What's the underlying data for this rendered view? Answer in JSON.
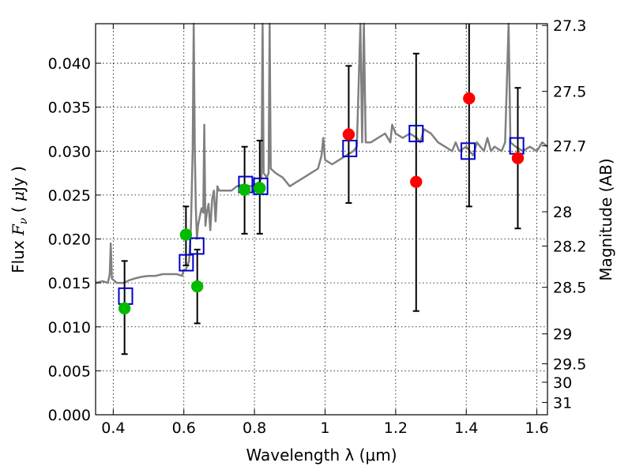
{
  "chart_data": {
    "type": "scatter",
    "xlabel": "Wavelength  λ (μm)",
    "ylabel_left": "Flux  F_ν  ( μJy )",
    "ylabel_right": "Magnitude (AB)",
    "xlim": [
      0.35,
      1.63
    ],
    "ylim": [
      0.0,
      0.0445
    ],
    "grid": true,
    "x_ticks": [
      {
        "value": 0.4,
        "label": "0.4"
      },
      {
        "value": 0.6,
        "label": "0.6"
      },
      {
        "value": 0.8,
        "label": "0.8"
      },
      {
        "value": 1.0,
        "label": "1"
      },
      {
        "value": 1.2,
        "label": "1.2"
      },
      {
        "value": 1.4,
        "label": "1.4"
      },
      {
        "value": 1.6,
        "label": "1.6"
      }
    ],
    "y_ticks": [
      {
        "value": 0.0,
        "label": "0.000"
      },
      {
        "value": 0.005,
        "label": "0.005"
      },
      {
        "value": 0.01,
        "label": "0.010"
      },
      {
        "value": 0.015,
        "label": "0.015"
      },
      {
        "value": 0.02,
        "label": "0.020"
      },
      {
        "value": 0.025,
        "label": "0.025"
      },
      {
        "value": 0.03,
        "label": "0.030"
      },
      {
        "value": 0.035,
        "label": "0.035"
      },
      {
        "value": 0.04,
        "label": "0.040"
      }
    ],
    "mag_ticks": [
      {
        "flux": 0.0443,
        "label": "27.3"
      },
      {
        "flux": 0.0368,
        "label": "27.5"
      },
      {
        "flux": 0.0306,
        "label": "27.7"
      },
      {
        "flux": 0.0231,
        "label": "28"
      },
      {
        "flux": 0.0192,
        "label": "28.2"
      },
      {
        "flux": 0.0145,
        "label": "28.5"
      },
      {
        "flux": 0.0092,
        "label": "29"
      },
      {
        "flux": 0.0058,
        "label": "29.5"
      },
      {
        "flux": 0.0037,
        "label": "30"
      },
      {
        "flux": 0.0014,
        "label": "31"
      }
    ],
    "series": [
      {
        "kind": "model_spectrum",
        "color": "#808080",
        "points": [
          [
            0.35,
            0.015
          ],
          [
            0.37,
            0.0152
          ],
          [
            0.385,
            0.015
          ],
          [
            0.39,
            0.016
          ],
          [
            0.393,
            0.0195
          ],
          [
            0.396,
            0.0155
          ],
          [
            0.41,
            0.015
          ],
          [
            0.43,
            0.015
          ],
          [
            0.445,
            0.0153
          ],
          [
            0.46,
            0.0155
          ],
          [
            0.48,
            0.0157
          ],
          [
            0.5,
            0.0158
          ],
          [
            0.52,
            0.0158
          ],
          [
            0.54,
            0.016
          ],
          [
            0.56,
            0.016
          ],
          [
            0.58,
            0.016
          ],
          [
            0.595,
            0.0158
          ],
          [
            0.6,
            0.0165
          ],
          [
            0.605,
            0.0165
          ],
          [
            0.61,
            0.017
          ],
          [
            0.615,
            0.0175
          ],
          [
            0.62,
            0.0215
          ],
          [
            0.625,
            0.03
          ],
          [
            0.628,
            0.0445
          ],
          [
            0.631,
            0.03
          ],
          [
            0.634,
            0.0235
          ],
          [
            0.637,
            0.02
          ],
          [
            0.64,
            0.0215
          ],
          [
            0.645,
            0.0225
          ],
          [
            0.65,
            0.0235
          ],
          [
            0.655,
            0.023
          ],
          [
            0.658,
            0.033
          ],
          [
            0.661,
            0.0215
          ],
          [
            0.665,
            0.023
          ],
          [
            0.67,
            0.024
          ],
          [
            0.675,
            0.021
          ],
          [
            0.68,
            0.0245
          ],
          [
            0.685,
            0.0255
          ],
          [
            0.69,
            0.022
          ],
          [
            0.695,
            0.026
          ],
          [
            0.7,
            0.0255
          ],
          [
            0.71,
            0.0255
          ],
          [
            0.72,
            0.0255
          ],
          [
            0.735,
            0.0255
          ],
          [
            0.75,
            0.026
          ],
          [
            0.77,
            0.0262
          ],
          [
            0.79,
            0.026
          ],
          [
            0.8,
            0.0262
          ],
          [
            0.815,
            0.0265
          ],
          [
            0.82,
            0.027
          ],
          [
            0.823,
            0.0445
          ],
          [
            0.826,
            0.0275
          ],
          [
            0.835,
            0.027
          ],
          [
            0.84,
            0.0275
          ],
          [
            0.843,
            0.0445
          ],
          [
            0.846,
            0.028
          ],
          [
            0.86,
            0.0275
          ],
          [
            0.88,
            0.027
          ],
          [
            0.9,
            0.026
          ],
          [
            0.92,
            0.0265
          ],
          [
            0.94,
            0.027
          ],
          [
            0.96,
            0.0275
          ],
          [
            0.98,
            0.028
          ],
          [
            0.99,
            0.0295
          ],
          [
            0.995,
            0.0315
          ],
          [
            1.0,
            0.029
          ],
          [
            1.02,
            0.0285
          ],
          [
            1.04,
            0.029
          ],
          [
            1.06,
            0.0295
          ],
          [
            1.08,
            0.03
          ],
          [
            1.09,
            0.0305
          ],
          [
            1.1,
            0.0445
          ],
          [
            1.105,
            0.031
          ],
          [
            1.11,
            0.0445
          ],
          [
            1.115,
            0.031
          ],
          [
            1.13,
            0.031
          ],
          [
            1.15,
            0.0315
          ],
          [
            1.17,
            0.032
          ],
          [
            1.185,
            0.031
          ],
          [
            1.19,
            0.033
          ],
          [
            1.2,
            0.032
          ],
          [
            1.22,
            0.0315
          ],
          [
            1.24,
            0.032
          ],
          [
            1.26,
            0.0315
          ],
          [
            1.27,
            0.031
          ],
          [
            1.28,
            0.0325
          ],
          [
            1.3,
            0.032
          ],
          [
            1.32,
            0.031
          ],
          [
            1.34,
            0.0305
          ],
          [
            1.36,
            0.03
          ],
          [
            1.37,
            0.031
          ],
          [
            1.38,
            0.03
          ],
          [
            1.4,
            0.0305
          ],
          [
            1.42,
            0.0295
          ],
          [
            1.43,
            0.031
          ],
          [
            1.45,
            0.03
          ],
          [
            1.46,
            0.0315
          ],
          [
            1.47,
            0.03
          ],
          [
            1.48,
            0.0305
          ],
          [
            1.5,
            0.03
          ],
          [
            1.51,
            0.031
          ],
          [
            1.52,
            0.0445
          ],
          [
            1.525,
            0.031
          ],
          [
            1.54,
            0.0305
          ],
          [
            1.56,
            0.03
          ],
          [
            1.58,
            0.0305
          ],
          [
            1.6,
            0.03
          ],
          [
            1.615,
            0.031
          ],
          [
            1.63,
            0.0305
          ]
        ]
      },
      {
        "kind": "model_photometry",
        "marker": "open-square",
        "color": "#0000cc",
        "points": [
          [
            0.435,
            0.0135
          ],
          [
            0.607,
            0.0173
          ],
          [
            0.637,
            0.0192
          ],
          [
            0.775,
            0.0262
          ],
          [
            0.818,
            0.026
          ],
          [
            1.07,
            0.0303
          ],
          [
            1.258,
            0.032
          ],
          [
            1.405,
            0.03
          ],
          [
            1.543,
            0.0306
          ]
        ]
      },
      {
        "kind": "observed_optical",
        "marker": "filled-circle",
        "color": "#00bb00",
        "points": [
          {
            "x": 0.432,
            "y": 0.0121,
            "err_low": 0.0069,
            "err_high": 0.0175
          },
          {
            "x": 0.606,
            "y": 0.0205,
            "err_low": 0.017,
            "err_high": 0.0237
          },
          {
            "x": 0.638,
            "y": 0.0146,
            "err_low": 0.0104,
            "err_high": 0.0188
          },
          {
            "x": 0.772,
            "y": 0.0256,
            "err_low": 0.0206,
            "err_high": 0.0305
          },
          {
            "x": 0.815,
            "y": 0.0258,
            "err_low": 0.0206,
            "err_high": 0.0312
          }
        ]
      },
      {
        "kind": "observed_nir",
        "marker": "filled-circle",
        "color": "#ff0000",
        "points": [
          {
            "x": 1.067,
            "y": 0.0319,
            "err_low": 0.0241,
            "err_high": 0.0397
          },
          {
            "x": 1.258,
            "y": 0.0265,
            "err_low": 0.0118,
            "err_high": 0.0411
          },
          {
            "x": 1.408,
            "y": 0.036,
            "err_low": 0.0237,
            "err_high": 0.0445
          },
          {
            "x": 1.546,
            "y": 0.0292,
            "err_low": 0.0212,
            "err_high": 0.0372
          }
        ]
      }
    ]
  }
}
